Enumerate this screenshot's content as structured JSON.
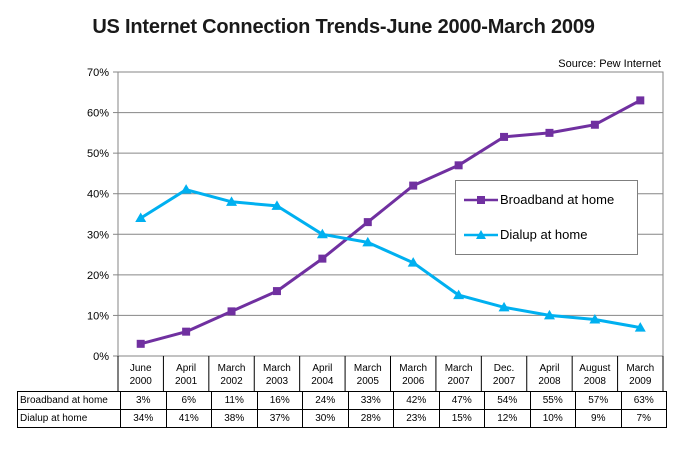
{
  "chart_data": {
    "type": "line",
    "title": "US Internet Connection Trends-June 2000-March 2009",
    "source": "Source: Pew Internet",
    "categories": [
      [
        "June",
        "2000"
      ],
      [
        "April",
        "2001"
      ],
      [
        "March",
        "2002"
      ],
      [
        "March",
        "2003"
      ],
      [
        "April",
        "2004"
      ],
      [
        "March",
        "2005"
      ],
      [
        "March",
        "2006"
      ],
      [
        "March",
        "2007"
      ],
      [
        "Dec.",
        "2007"
      ],
      [
        "April",
        "2008"
      ],
      [
        "August",
        "2008"
      ],
      [
        "March",
        "2009"
      ]
    ],
    "y_ticks": [
      "0%",
      "10%",
      "20%",
      "30%",
      "40%",
      "50%",
      "60%",
      "70%"
    ],
    "ylim": [
      0,
      70
    ],
    "grid": true,
    "legend_position": "center-right",
    "series": [
      {
        "name": "Broadband at home",
        "color": "#7030a0",
        "marker": "square",
        "values": [
          3,
          6,
          11,
          16,
          24,
          33,
          42,
          47,
          54,
          55,
          57,
          63
        ],
        "labels": [
          "3%",
          "6%",
          "11%",
          "16%",
          "24%",
          "33%",
          "42%",
          "47%",
          "54%",
          "55%",
          "57%",
          "63%"
        ]
      },
      {
        "name": "Dialup at home",
        "color": "#00b0f0",
        "marker": "triangle",
        "values": [
          34,
          41,
          38,
          37,
          30,
          28,
          23,
          15,
          12,
          10,
          9,
          7
        ],
        "labels": [
          "34%",
          "41%",
          "38%",
          "37%",
          "30%",
          "28%",
          "23%",
          "15%",
          "12%",
          "10%",
          "9%",
          "7%"
        ]
      }
    ]
  },
  "table": {
    "rows": [
      {
        "label": "Broadband at home"
      },
      {
        "label": "Dialup at home"
      }
    ]
  }
}
